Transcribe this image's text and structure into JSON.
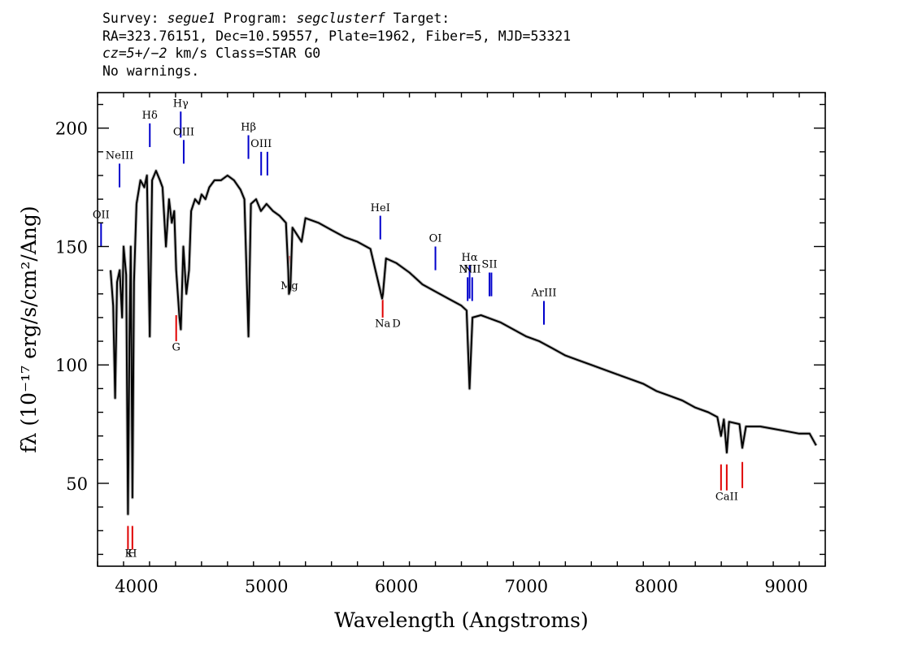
{
  "header": {
    "line1": {
      "a": "Survey: ",
      "survey": "segue1",
      "b": " Program: ",
      "program": "segclusterf",
      "c": " Target:"
    },
    "line2": "RA=323.76151, Dec=10.59557, Plate=1962, Fiber=5, MJD=53321",
    "line3": {
      "cz": "cz=5+/−2",
      "rest": " km/s Class=STAR G0"
    },
    "line4": "No warnings."
  },
  "chart_data": {
    "type": "line",
    "xlabel": "Wavelength (Angstroms)",
    "ylabel": "fλ (10⁻¹⁷ erg/s/cm²/Ang)",
    "xlim": [
      3700,
      9300
    ],
    "ylim": [
      15,
      215
    ],
    "xticks": [
      4000,
      5000,
      6000,
      7000,
      8000,
      9000
    ],
    "yticks": [
      50,
      100,
      150,
      200
    ],
    "grid": false,
    "series": [
      {
        "color": "#000000",
        "points": [
          [
            3800,
            140
          ],
          [
            3820,
            125
          ],
          [
            3835,
            86
          ],
          [
            3850,
            135
          ],
          [
            3870,
            140
          ],
          [
            3889,
            120
          ],
          [
            3900,
            150
          ],
          [
            3920,
            138
          ],
          [
            3933.7,
            37
          ],
          [
            3945,
            110
          ],
          [
            3955,
            150
          ],
          [
            3968.5,
            44
          ],
          [
            3980,
            135
          ],
          [
            4000,
            168
          ],
          [
            4030,
            178
          ],
          [
            4060,
            175
          ],
          [
            4080,
            180
          ],
          [
            4101.7,
            112
          ],
          [
            4120,
            178
          ],
          [
            4150,
            182
          ],
          [
            4180,
            178
          ],
          [
            4200,
            175
          ],
          [
            4226,
            150
          ],
          [
            4250,
            170
          ],
          [
            4271,
            160
          ],
          [
            4290,
            165
          ],
          [
            4305,
            140
          ],
          [
            4330,
            120
          ],
          [
            4340.5,
            115
          ],
          [
            4360,
            150
          ],
          [
            4383,
            130
          ],
          [
            4404,
            140
          ],
          [
            4420,
            165
          ],
          [
            4450,
            170
          ],
          [
            4480,
            168
          ],
          [
            4500,
            172
          ],
          [
            4530,
            170
          ],
          [
            4560,
            175
          ],
          [
            4600,
            178
          ],
          [
            4650,
            178
          ],
          [
            4700,
            180
          ],
          [
            4750,
            178
          ],
          [
            4800,
            174
          ],
          [
            4830,
            170
          ],
          [
            4861.3,
            112
          ],
          [
            4880,
            168
          ],
          [
            4920,
            170
          ],
          [
            4957,
            165
          ],
          [
            5000,
            168
          ],
          [
            5050,
            165
          ],
          [
            5100,
            163
          ],
          [
            5150,
            160
          ],
          [
            5167,
            140
          ],
          [
            5172.7,
            130
          ],
          [
            5183.6,
            132
          ],
          [
            5200,
            158
          ],
          [
            5270,
            152
          ],
          [
            5300,
            162
          ],
          [
            5400,
            160
          ],
          [
            5500,
            157
          ],
          [
            5600,
            154
          ],
          [
            5700,
            152
          ],
          [
            5800,
            149
          ],
          [
            5889.9,
            128
          ],
          [
            5895.9,
            130
          ],
          [
            5920,
            145
          ],
          [
            6000,
            143
          ],
          [
            6100,
            139
          ],
          [
            6200,
            134
          ],
          [
            6300,
            131
          ],
          [
            6400,
            128
          ],
          [
            6500,
            125
          ],
          [
            6540,
            123
          ],
          [
            6562.8,
            90
          ],
          [
            6585,
            120
          ],
          [
            6650,
            121
          ],
          [
            6700,
            120
          ],
          [
            6800,
            118
          ],
          [
            6900,
            115
          ],
          [
            7000,
            112
          ],
          [
            7100,
            110
          ],
          [
            7200,
            107
          ],
          [
            7300,
            104
          ],
          [
            7400,
            102
          ],
          [
            7500,
            100
          ],
          [
            7600,
            98
          ],
          [
            7700,
            96
          ],
          [
            7800,
            94
          ],
          [
            7900,
            92
          ],
          [
            8000,
            89
          ],
          [
            8100,
            87
          ],
          [
            8200,
            85
          ],
          [
            8300,
            82
          ],
          [
            8400,
            80
          ],
          [
            8470,
            78
          ],
          [
            8498,
            70
          ],
          [
            8520,
            77
          ],
          [
            8542,
            63
          ],
          [
            8560,
            76
          ],
          [
            8640,
            75
          ],
          [
            8662,
            65
          ],
          [
            8690,
            74
          ],
          [
            8800,
            74
          ],
          [
            8900,
            73
          ],
          [
            9000,
            72
          ],
          [
            9100,
            71
          ],
          [
            9180,
            71
          ],
          [
            9230,
            66
          ]
        ]
      }
    ],
    "lines": [
      {
        "label": "OII",
        "x": 3727,
        "color": "#0000cc",
        "y": [
          150,
          160
        ],
        "label_y": 162,
        "side": "top"
      },
      {
        "label": "NeIII",
        "x": 3869,
        "color": "#0000cc",
        "y": [
          175,
          185
        ],
        "label_y": 187,
        "side": "top"
      },
      {
        "label": "Hδ",
        "x": 4102,
        "color": "#0000cc",
        "y": [
          192,
          202
        ],
        "label_y": 204,
        "side": "top"
      },
      {
        "label": "Hγ",
        "x": 4340,
        "color": "#0000cc",
        "y": [
          196,
          207
        ],
        "label_y": 209,
        "side": "top"
      },
      {
        "label": "OIII",
        "x": 4363,
        "color": "#0000cc",
        "y": [
          185,
          195
        ],
        "label_y": 197,
        "side": "top"
      },
      {
        "label": "Hβ",
        "x": 4861,
        "color": "#0000cc",
        "y": [
          187,
          197
        ],
        "label_y": 199,
        "side": "top"
      },
      {
        "label": "OIII",
        "x": 4959,
        "color": "#0000cc",
        "y": [
          180,
          190
        ],
        "label_y": 192,
        "side": "top"
      },
      {
        "label": "",
        "x": 5007,
        "color": "#0000cc",
        "y": [
          180,
          190
        ],
        "label_y": 192,
        "side": "top"
      },
      {
        "label": "HeI",
        "x": 5876,
        "color": "#0000cc",
        "y": [
          153,
          163
        ],
        "label_y": 165,
        "side": "top"
      },
      {
        "label": "OI",
        "x": 6300,
        "color": "#0000cc",
        "y": [
          140,
          150
        ],
        "label_y": 152,
        "side": "top"
      },
      {
        "label": "NII",
        "x": 6548,
        "color": "#0000cc",
        "y": [
          127,
          137
        ],
        "label_y": 139,
        "side": "top"
      },
      {
        "label": "Hα",
        "x": 6563,
        "color": "#0000cc",
        "y": [
          128,
          142
        ],
        "label_y": 144,
        "side": "top"
      },
      {
        "label": "NII",
        "x": 6583,
        "color": "#0000cc",
        "y": [
          127,
          137
        ],
        "label_y": 139,
        "side": "top"
      },
      {
        "label": "SII",
        "x": 6716,
        "color": "#0000cc",
        "y": [
          129,
          139
        ],
        "label_y": 141,
        "side": "top"
      },
      {
        "label": "",
        "x": 6731,
        "color": "#0000cc",
        "y": [
          129,
          139
        ],
        "label_y": 141,
        "side": "top"
      },
      {
        "label": "ArIII",
        "x": 7135,
        "color": "#0000cc",
        "y": [
          117,
          127
        ],
        "label_y": 129,
        "side": "top"
      },
      {
        "label": "",
        "x": 3934,
        "color": "#e00000",
        "y": [
          22,
          32
        ],
        "label_y": 19,
        "side": "bottom"
      },
      {
        "label": "K",
        "x": 3940,
        "color": "#ffffff",
        "y": [
          22,
          22
        ],
        "label_y": 19,
        "side": "bottom"
      },
      {
        "label": "H",
        "x": 3968,
        "color": "#e00000",
        "y": [
          22,
          32
        ],
        "label_y": 19,
        "side": "bottom"
      },
      {
        "label": "G",
        "x": 4305,
        "color": "#e00000",
        "y": [
          110,
          121
        ],
        "label_y": 106,
        "side": "bottom"
      },
      {
        "label": "Mg",
        "x": 5176,
        "color": "#e00000",
        "y": [
          136,
          146
        ],
        "label_y": 132,
        "side": "bottom"
      },
      {
        "label": "Na",
        "x": 5894,
        "color": "#e00000",
        "y": [
          120,
          130
        ],
        "label_y": 116,
        "side": "bottom"
      },
      {
        "label": "D",
        "x": 6000,
        "color": "#ffffff",
        "y": [
          120,
          120
        ],
        "label_y": 116,
        "side": "bottom"
      },
      {
        "label": "",
        "x": 8498,
        "color": "#e00000",
        "y": [
          47,
          58
        ],
        "label_y": 43,
        "side": "bottom"
      },
      {
        "label": "CaII",
        "x": 8542,
        "color": "#e00000",
        "y": [
          47,
          58
        ],
        "label_y": 43,
        "side": "bottom"
      },
      {
        "label": "",
        "x": 8662,
        "color": "#e00000",
        "y": [
          48,
          59
        ],
        "label_y": 44,
        "side": "bottom"
      }
    ]
  }
}
